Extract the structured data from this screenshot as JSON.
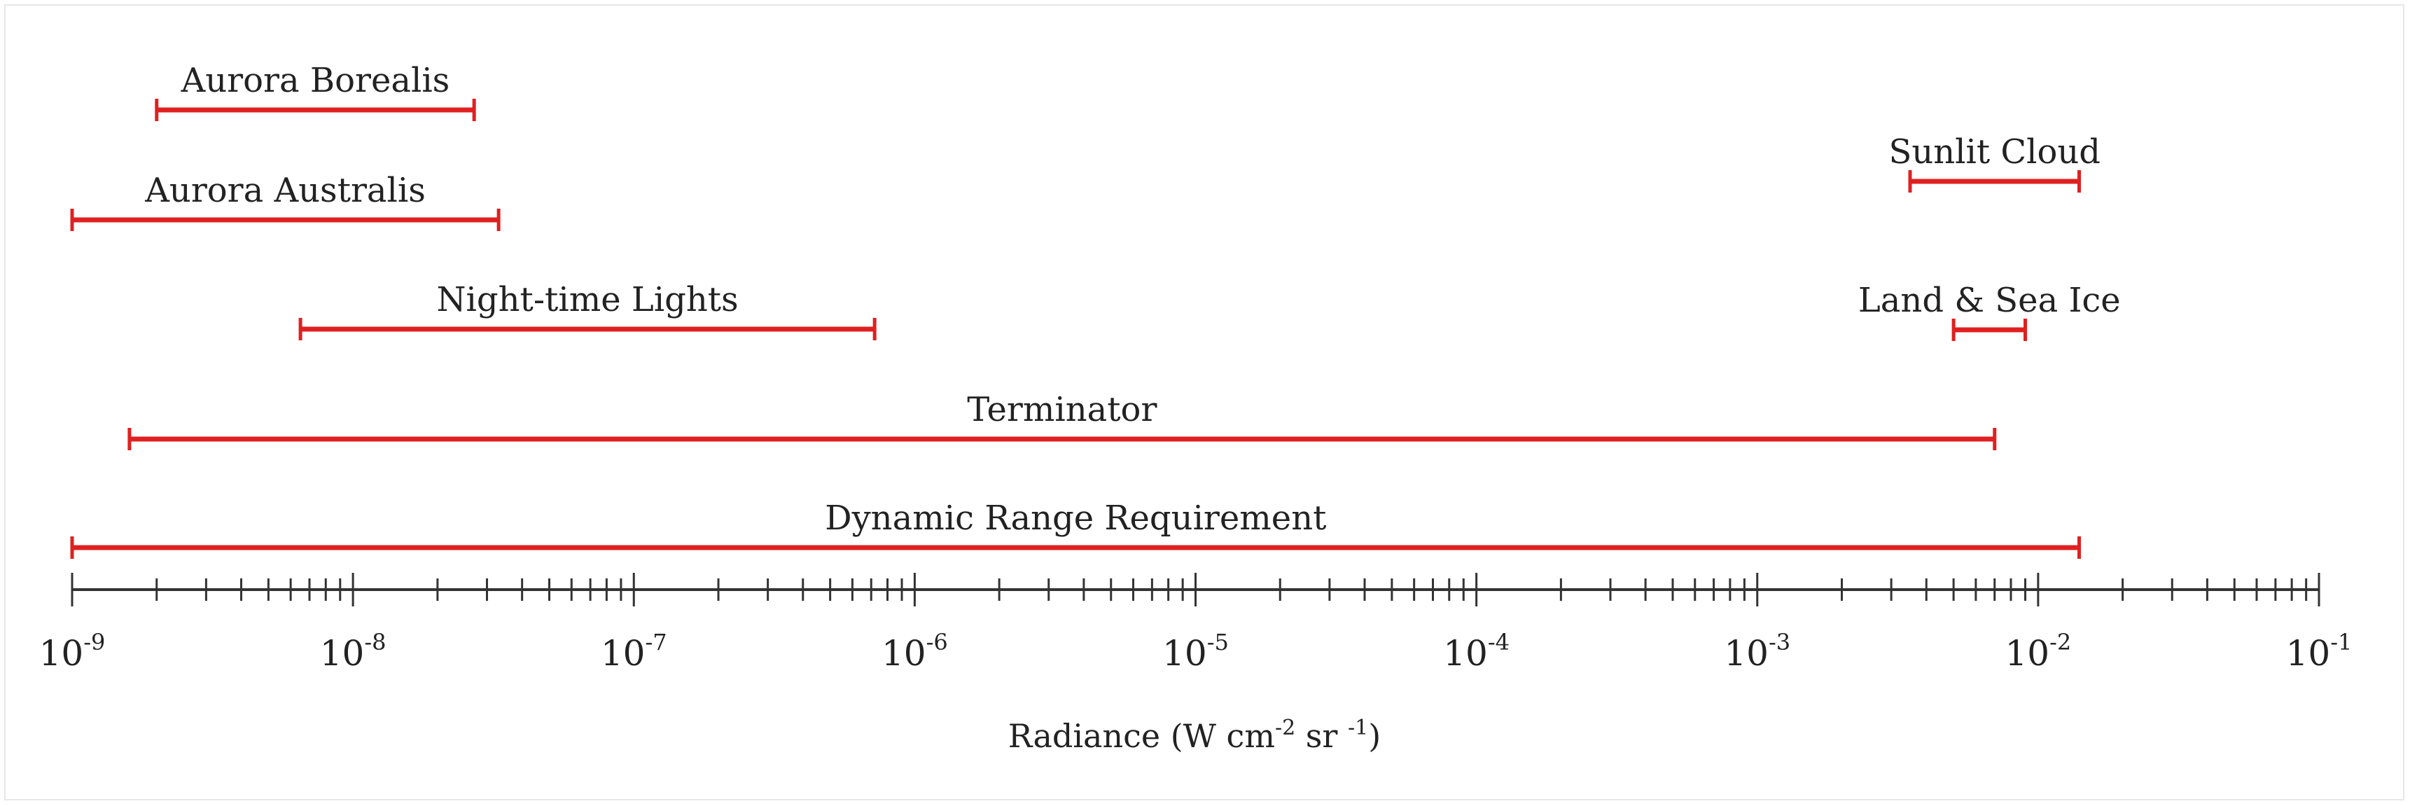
{
  "chart_data": {
    "type": "range",
    "xscale": "log",
    "xlim": [
      1e-09,
      0.1
    ],
    "xlabel": {
      "prefix": "Radiance (W cm",
      "sup1": "-2",
      "mid": " sr ",
      "sup2": "-1",
      "suffix": ")"
    },
    "tick_labels": [
      {
        "value": 1e-09,
        "base": "10",
        "exp": "-9"
      },
      {
        "value": 1e-08,
        "base": "10",
        "exp": "-8"
      },
      {
        "value": 1e-07,
        "base": "10",
        "exp": "-7"
      },
      {
        "value": 1e-06,
        "base": "10",
        "exp": "-6"
      },
      {
        "value": 1e-05,
        "base": "10",
        "exp": "-5"
      },
      {
        "value": 0.0001,
        "base": "10",
        "exp": "-4"
      },
      {
        "value": 0.001,
        "base": "10",
        "exp": "-3"
      },
      {
        "value": 0.01,
        "base": "10",
        "exp": "-2"
      },
      {
        "value": 0.1,
        "base": "10",
        "exp": "-1"
      }
    ],
    "grid": false,
    "bar_color": "#e02020",
    "ranges": [
      {
        "label": "Aurora Borealis",
        "min": 2e-09,
        "max": 2.7e-08
      },
      {
        "label": "Aurora Australis",
        "min": 1e-09,
        "max": 3.3e-08
      },
      {
        "label": "Night-time Lights",
        "min": 6.5e-09,
        "max": 7.2e-07
      },
      {
        "label": "Terminator",
        "min": 1.6e-09,
        "max": 0.007
      },
      {
        "label": "Dynamic Range Requirement",
        "min": 1e-09,
        "max": 0.014
      },
      {
        "label": "Sunlit Cloud",
        "min": 0.0035,
        "max": 0.014
      },
      {
        "label": "Land & Sea Ice",
        "min": 0.005,
        "max": 0.009
      }
    ]
  }
}
